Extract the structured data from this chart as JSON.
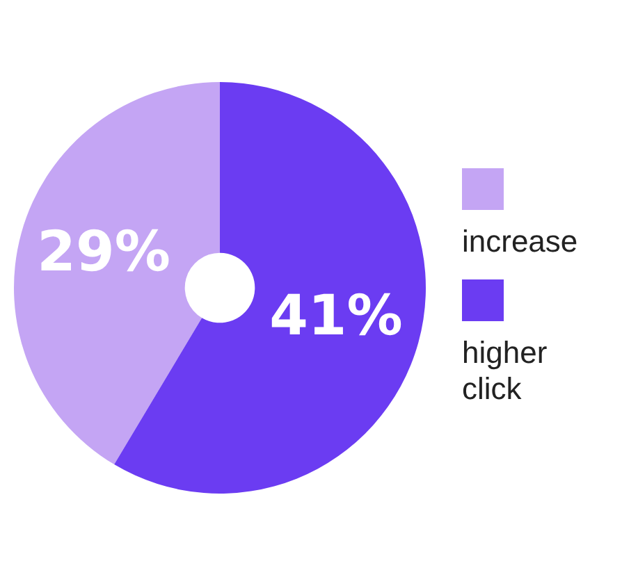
{
  "chart_data": {
    "type": "donut",
    "categories": [
      "increase",
      "higher click"
    ],
    "values": [
      29,
      41
    ],
    "colors": [
      "#c4a5f4",
      "#6b3cf2"
    ],
    "value_labels": [
      "29%",
      "41%"
    ],
    "legend": "right"
  }
}
